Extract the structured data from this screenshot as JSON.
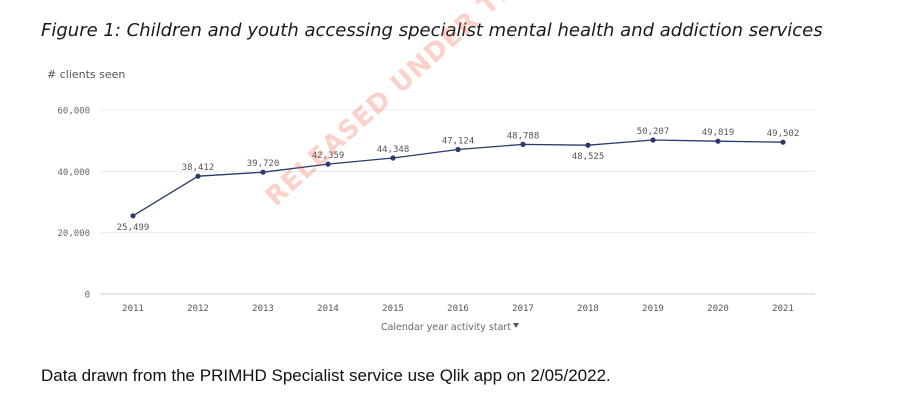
{
  "figure_title": "Figure 1: Children and youth accessing specialist mental health and addiction services",
  "footnote": "Data drawn from the PRIMHD Specialist service use Qlik app on 2/05/2022.",
  "watermark": "RELEASED UNDER THE OFFICIAL INFORMATION ACT",
  "chart_data": {
    "type": "line",
    "ylabel": "# clients seen",
    "xlabel": "Calendar year activity start",
    "xlabel_icon": "dropdown-arrow-icon",
    "ylim": [
      0,
      60000
    ],
    "yticks": [
      0,
      20000,
      40000,
      60000
    ],
    "ytick_labels": [
      "0",
      "20,000",
      "40,000",
      "60,000"
    ],
    "grid": true,
    "line_color": "#2a3a6b",
    "categories": [
      "2011",
      "2012",
      "2013",
      "2014",
      "2015",
      "2016",
      "2017",
      "2018",
      "2019",
      "2020",
      "2021"
    ],
    "values": [
      25499,
      38412,
      39720,
      42359,
      44348,
      47124,
      48788,
      48525,
      50207,
      49819,
      49502
    ],
    "value_labels": [
      "25,499",
      "38,412",
      "39,720",
      "42,359",
      "44,348",
      "47,124",
      "48,788",
      "48,525",
      "50,207",
      "49,819",
      "49,502"
    ]
  }
}
